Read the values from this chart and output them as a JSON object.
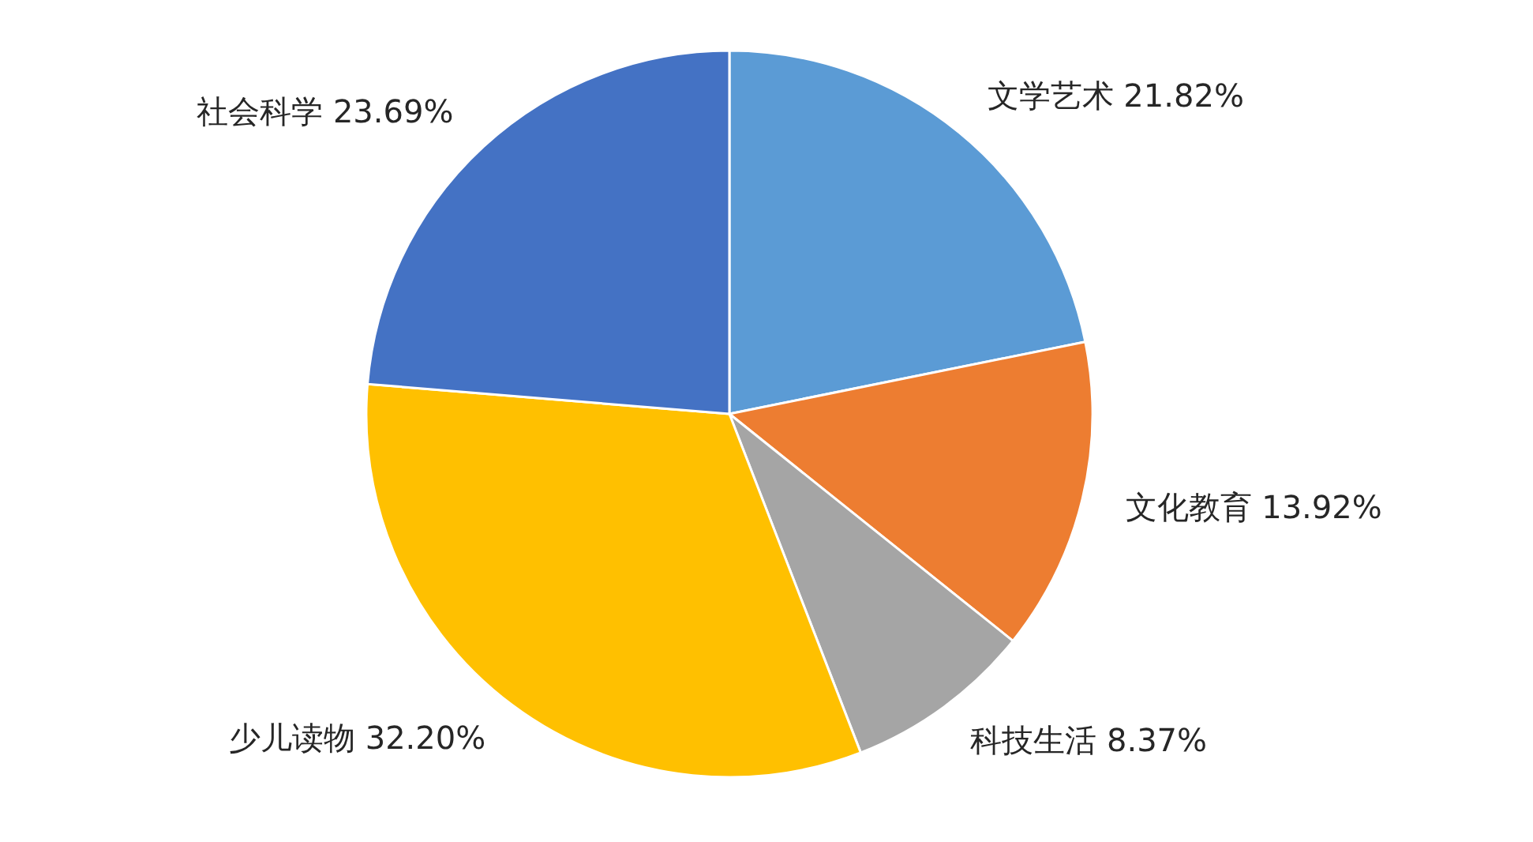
{
  "chart_data": {
    "type": "pie",
    "categories": [
      "文学艺术",
      "文化教育",
      "科技生活",
      "少儿读物",
      "社会科学"
    ],
    "values": [
      21.82,
      13.92,
      8.37,
      32.2,
      23.69
    ],
    "value_labels": [
      "21.82%",
      "13.92%",
      "8.37%",
      "32.20%",
      "23.69%"
    ],
    "colors": [
      "#5b9bd5",
      "#ed7d31",
      "#a5a5a5",
      "#ffc000",
      "#4472c4"
    ]
  }
}
